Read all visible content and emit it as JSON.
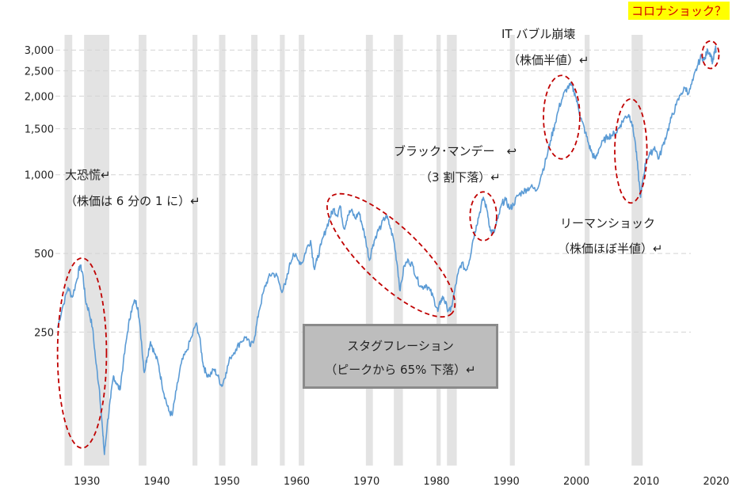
{
  "chart_data": {
    "type": "line",
    "scale": "log",
    "grid": "horizontal dashed",
    "xlim": [
      1925.5,
      2020
    ],
    "ylim": [
      75,
      4000
    ],
    "x_ticks": [
      1930,
      1940,
      1950,
      1960,
      1970,
      1980,
      1990,
      2000,
      2010,
      2020
    ],
    "y_ticks": [
      250,
      500,
      1000,
      1500,
      2000,
      2500,
      3000
    ],
    "y_tick_labels": [
      "250",
      "500",
      "1,000",
      "1,500",
      "2,000",
      "2,500",
      "3,000"
    ],
    "recessions": [
      [
        1926.8,
        1927.9
      ],
      [
        1929.6,
        1933.2
      ],
      [
        1937.4,
        1938.5
      ],
      [
        1945.1,
        1945.8
      ],
      [
        1948.9,
        1949.8
      ],
      [
        1953.5,
        1954.4
      ],
      [
        1957.6,
        1958.3
      ],
      [
        1960.3,
        1961.1
      ],
      [
        1969.9,
        1970.9
      ],
      [
        1973.9,
        1975.2
      ],
      [
        1980.0,
        1980.6
      ],
      [
        1981.5,
        1982.9
      ],
      [
        1990.5,
        1991.2
      ],
      [
        2001.2,
        2001.9
      ],
      [
        2007.9,
        2009.5
      ]
    ],
    "series": [
      {
        "color": "#5b9bd5",
        "points": [
          [
            1925.8,
            260
          ],
          [
            1926.5,
            310
          ],
          [
            1927.3,
            370
          ],
          [
            1927.9,
            340
          ],
          [
            1928.6,
            400
          ],
          [
            1929.0,
            450
          ],
          [
            1929.4,
            420
          ],
          [
            1929.8,
            330
          ],
          [
            1930.3,
            300
          ],
          [
            1930.8,
            260
          ],
          [
            1931.3,
            190
          ],
          [
            1931.8,
            150
          ],
          [
            1932.3,
            100
          ],
          [
            1932.5,
            85
          ],
          [
            1932.9,
            110
          ],
          [
            1933.4,
            140
          ],
          [
            1933.8,
            170
          ],
          [
            1934.2,
            160
          ],
          [
            1934.7,
            150
          ],
          [
            1935.2,
            190
          ],
          [
            1935.8,
            250
          ],
          [
            1936.3,
            300
          ],
          [
            1936.9,
            330
          ],
          [
            1937.3,
            310
          ],
          [
            1937.8,
            230
          ],
          [
            1938.2,
            175
          ],
          [
            1938.6,
            200
          ],
          [
            1939.1,
            230
          ],
          [
            1939.6,
            210
          ],
          [
            1940.2,
            190
          ],
          [
            1940.7,
            160
          ],
          [
            1941.2,
            140
          ],
          [
            1941.7,
            125
          ],
          [
            1942.2,
            120
          ],
          [
            1942.8,
            150
          ],
          [
            1943.5,
            190
          ],
          [
            1944.2,
            210
          ],
          [
            1945.0,
            240
          ],
          [
            1945.6,
            270
          ],
          [
            1946.1,
            240
          ],
          [
            1946.6,
            190
          ],
          [
            1947.0,
            175
          ],
          [
            1947.5,
            170
          ],
          [
            1948.2,
            180
          ],
          [
            1948.7,
            170
          ],
          [
            1949.3,
            155
          ],
          [
            1949.9,
            175
          ],
          [
            1950.5,
            200
          ],
          [
            1951.3,
            215
          ],
          [
            1952.0,
            230
          ],
          [
            1952.8,
            240
          ],
          [
            1953.4,
            220
          ],
          [
            1954.0,
            240
          ],
          [
            1954.6,
            300
          ],
          [
            1955.3,
            360
          ],
          [
            1955.9,
            400
          ],
          [
            1956.5,
            420
          ],
          [
            1957.2,
            410
          ],
          [
            1957.8,
            360
          ],
          [
            1958.4,
            380
          ],
          [
            1958.9,
            440
          ],
          [
            1959.5,
            500
          ],
          [
            1960.2,
            470
          ],
          [
            1960.8,
            460
          ],
          [
            1961.4,
            520
          ],
          [
            1962.0,
            560
          ],
          [
            1962.5,
            440
          ],
          [
            1962.9,
            470
          ],
          [
            1963.5,
            540
          ],
          [
            1964.2,
            620
          ],
          [
            1964.8,
            690
          ],
          [
            1965.3,
            740
          ],
          [
            1965.8,
            700
          ],
          [
            1966.2,
            760
          ],
          [
            1966.8,
            620
          ],
          [
            1967.3,
            700
          ],
          [
            1967.8,
            730
          ],
          [
            1968.4,
            680
          ],
          [
            1968.9,
            720
          ],
          [
            1969.4,
            640
          ],
          [
            1969.9,
            560
          ],
          [
            1970.4,
            470
          ],
          [
            1970.9,
            540
          ],
          [
            1971.5,
            600
          ],
          [
            1972.1,
            640
          ],
          [
            1972.8,
            700
          ],
          [
            1973.3,
            640
          ],
          [
            1973.9,
            560
          ],
          [
            1974.4,
            450
          ],
          [
            1974.8,
            360
          ],
          [
            1975.4,
            450
          ],
          [
            1976.0,
            470
          ],
          [
            1976.6,
            450
          ],
          [
            1977.2,
            400
          ],
          [
            1977.9,
            370
          ],
          [
            1978.5,
            380
          ],
          [
            1979.1,
            360
          ],
          [
            1979.7,
            330
          ],
          [
            1980.2,
            300
          ],
          [
            1980.6,
            330
          ],
          [
            1981.0,
            340
          ],
          [
            1981.5,
            310
          ],
          [
            1982.0,
            300
          ],
          [
            1982.6,
            360
          ],
          [
            1983.1,
            420
          ],
          [
            1983.6,
            460
          ],
          [
            1984.2,
            430
          ],
          [
            1984.7,
            470
          ],
          [
            1985.2,
            560
          ],
          [
            1985.7,
            640
          ],
          [
            1986.2,
            720
          ],
          [
            1986.7,
            820
          ],
          [
            1987.3,
            720
          ],
          [
            1987.7,
            610
          ],
          [
            1988.2,
            600
          ],
          [
            1988.8,
            680
          ],
          [
            1989.4,
            780
          ],
          [
            1989.9,
            800
          ],
          [
            1990.5,
            740
          ],
          [
            1991.0,
            770
          ],
          [
            1991.6,
            830
          ],
          [
            1992.3,
            860
          ],
          [
            1992.9,
            880
          ],
          [
            1993.5,
            900
          ],
          [
            1994.3,
            870
          ],
          [
            1995.0,
            1000
          ],
          [
            1995.7,
            1150
          ],
          [
            1996.3,
            1350
          ],
          [
            1996.9,
            1550
          ],
          [
            1997.5,
            1800
          ],
          [
            1998.1,
            2000
          ],
          [
            1998.7,
            2150
          ],
          [
            1999.3,
            2200
          ],
          [
            1999.8,
            2050
          ],
          [
            2000.3,
            1800
          ],
          [
            2000.8,
            1600
          ],
          [
            2001.3,
            1450
          ],
          [
            2001.8,
            1300
          ],
          [
            2002.3,
            1200
          ],
          [
            2002.7,
            1150
          ],
          [
            2003.2,
            1250
          ],
          [
            2003.9,
            1350
          ],
          [
            2004.5,
            1400
          ],
          [
            2005.1,
            1420
          ],
          [
            2005.7,
            1450
          ],
          [
            2006.3,
            1550
          ],
          [
            2006.9,
            1650
          ],
          [
            2007.5,
            1700
          ],
          [
            2007.9,
            1600
          ],
          [
            2008.4,
            1350
          ],
          [
            2008.8,
            1050
          ],
          [
            2009.2,
            820
          ],
          [
            2009.5,
            950
          ],
          [
            2010.0,
            1150
          ],
          [
            2010.6,
            1200
          ],
          [
            2011.2,
            1280
          ],
          [
            2011.8,
            1150
          ],
          [
            2012.4,
            1300
          ],
          [
            2013.0,
            1450
          ],
          [
            2013.6,
            1650
          ],
          [
            2014.3,
            1850
          ],
          [
            2015.0,
            2050
          ],
          [
            2015.6,
            2150
          ],
          [
            2016.1,
            2050
          ],
          [
            2016.7,
            2300
          ],
          [
            2017.3,
            2600
          ],
          [
            2017.9,
            2850
          ],
          [
            2018.3,
            2750
          ],
          [
            2018.8,
            3000
          ],
          [
            2019.2,
            2900
          ],
          [
            2019.5,
            2700
          ],
          [
            2019.9,
            3050
          ],
          [
            2020.0,
            2950
          ]
        ]
      }
    ],
    "annotations": [
      {
        "lines": [
          "大恐慌↵",
          "（株価は 6 分の 1 に）↵"
        ],
        "region": [
          1925.8,
          1932.8,
          90,
          480
        ]
      },
      {
        "lines": [
          "ブラック･マンデー　↩",
          "（3 割下落）↵"
        ],
        "region": [
          1984.8,
          1988.6,
          560,
          860
        ]
      },
      {
        "lines": [
          "IT バブル崩壊",
          "（株価半値）↵"
        ],
        "region": [
          1995.3,
          2000.5,
          1150,
          2400
        ]
      },
      {
        "lines": [
          "リーマンショック",
          "（株価ほぼ半値）↵"
        ],
        "region": [
          2005.5,
          2010.1,
          780,
          1950
        ]
      },
      {
        "lines": [
          "スタグフレーション",
          "（ピークから 65% 下落）↵"
        ],
        "region": [
          1964.8,
          1982.2,
          295,
          820
        ]
      },
      {
        "lines": [
          "コロナショック？"
        ],
        "region": [
          2018.0,
          2020.4,
          2550,
          3250
        ]
      }
    ]
  }
}
